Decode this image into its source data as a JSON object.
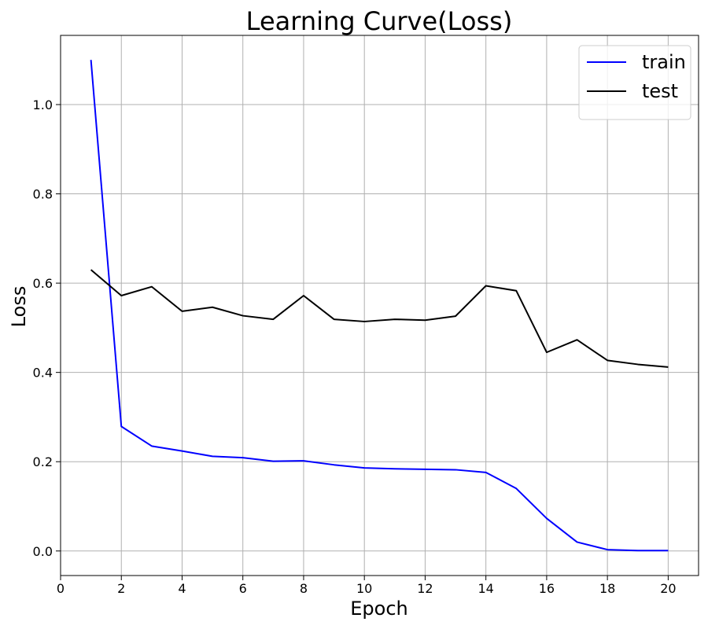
{
  "chart_data": {
    "type": "line",
    "title": "Learning Curve(Loss)",
    "xlabel": "Epoch",
    "ylabel": "Loss",
    "xlim": [
      0,
      21
    ],
    "ylim": [
      -0.055,
      1.155
    ],
    "xticks": [
      0,
      2,
      4,
      6,
      8,
      10,
      12,
      14,
      16,
      18,
      20
    ],
    "yticks": [
      0.0,
      0.2,
      0.4,
      0.6,
      0.8,
      1.0
    ],
    "grid": true,
    "legend_position": "top-right",
    "x": [
      1,
      2,
      3,
      4,
      5,
      6,
      7,
      8,
      9,
      10,
      11,
      12,
      13,
      14,
      15,
      16,
      17,
      18,
      19,
      20
    ],
    "series": [
      {
        "name": "train",
        "color": "#0000ff",
        "values": [
          1.1,
          0.279,
          0.235,
          0.224,
          0.212,
          0.209,
          0.201,
          0.202,
          0.193,
          0.186,
          0.184,
          0.183,
          0.182,
          0.176,
          0.14,
          0.073,
          0.02,
          0.003,
          0.001,
          0.001
        ]
      },
      {
        "name": "test",
        "color": "#000000",
        "values": [
          0.63,
          0.572,
          0.592,
          0.537,
          0.546,
          0.527,
          0.519,
          0.572,
          0.519,
          0.514,
          0.519,
          0.517,
          0.526,
          0.594,
          0.583,
          0.445,
          0.473,
          0.427,
          0.418,
          0.412
        ]
      }
    ]
  }
}
